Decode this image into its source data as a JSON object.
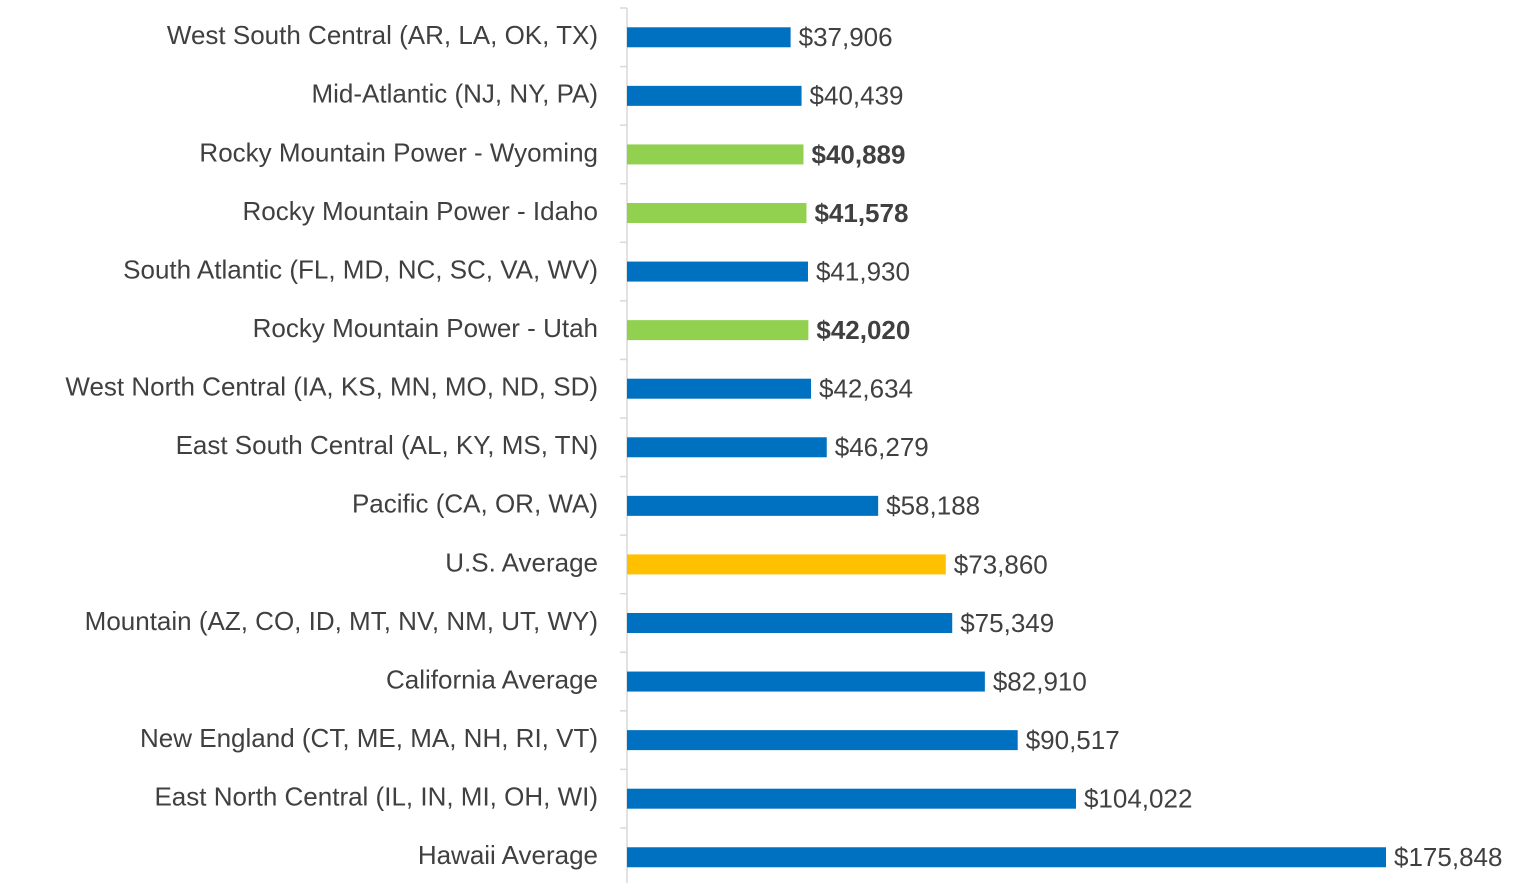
{
  "chart_data": {
    "type": "bar",
    "orientation": "horizontal",
    "categories": [
      "West South Central (AR, LA, OK, TX)",
      "Mid-Atlantic (NJ, NY, PA)",
      "Rocky Mountain Power - Wyoming",
      "Rocky Mountain Power - Idaho",
      "South Atlantic (FL, MD, NC, SC, VA, WV)",
      "Rocky Mountain Power - Utah",
      "West North Central (IA, KS, MN, MO, ND, SD)",
      "East South Central (AL, KY, MS, TN)",
      "Pacific (CA, OR, WA)",
      "U.S. Average",
      "Mountain (AZ, CO, ID, MT, NV, NM, UT, WY)",
      "California Average",
      "New England (CT, ME, MA, NH, RI, VT)",
      "East North Central (IL, IN, MI, OH, WI)",
      "Hawaii Average"
    ],
    "values": [
      37906,
      40439,
      40889,
      41578,
      41930,
      42020,
      42634,
      46279,
      58188,
      73860,
      75349,
      82910,
      90517,
      104022,
      175848
    ],
    "value_labels": [
      "$37,906",
      "$40,439",
      "$40,889",
      "$41,578",
      "$41,930",
      "$42,020",
      "$42,634",
      "$46,279",
      "$58,188",
      "$73,860",
      "$75,349",
      "$82,910",
      "$90,517",
      "$104,022",
      "$175,848"
    ],
    "colors": [
      "#0070c0",
      "#0070c0",
      "#92d050",
      "#92d050",
      "#0070c0",
      "#92d050",
      "#0070c0",
      "#0070c0",
      "#0070c0",
      "#ffc000",
      "#0070c0",
      "#0070c0",
      "#0070c0",
      "#0070c0",
      "#0070c0"
    ],
    "value_label_bold": [
      false,
      false,
      true,
      true,
      false,
      true,
      false,
      false,
      false,
      false,
      false,
      false,
      false,
      false,
      false
    ]
  }
}
